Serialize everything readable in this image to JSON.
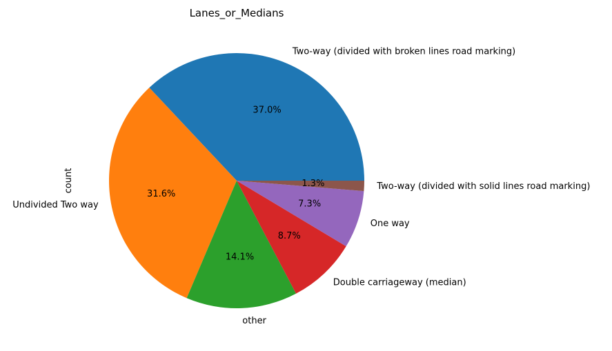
{
  "chart_data": {
    "type": "pie",
    "title": "Lanes_or_Medians",
    "ylabel": "count",
    "slices": [
      {
        "label": "Two-way (divided with broken lines road marking)",
        "pct_label": "37.0%",
        "value": 37.0,
        "color": "#1f77b4"
      },
      {
        "label": "Undivided Two way",
        "pct_label": "31.6%",
        "value": 31.6,
        "color": "#ff7f0e"
      },
      {
        "label": "other",
        "pct_label": "14.1%",
        "value": 14.1,
        "color": "#2ca02c"
      },
      {
        "label": "Double carriageway (median)",
        "pct_label": "8.7%",
        "value": 8.7,
        "color": "#d62728"
      },
      {
        "label": "One way",
        "pct_label": "7.3%",
        "value": 7.3,
        "color": "#9467bd"
      },
      {
        "label": "Two-way (divided with solid lines road marking)",
        "pct_label": "1.3%",
        "value": 1.3,
        "color": "#8c564b"
      }
    ],
    "start_angle_deg": 0,
    "direction": "counterclockwise"
  }
}
